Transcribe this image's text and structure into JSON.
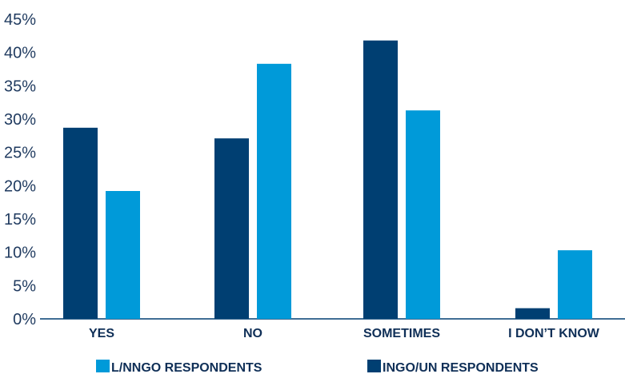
{
  "chart_data": {
    "type": "bar",
    "categories": [
      "YES",
      "NO",
      "SOMETIMES",
      "I DON’T KNOW"
    ],
    "series": [
      {
        "name": "INGO/UN RESPONDENTS",
        "color": "#003f72",
        "values": [
          28.7,
          27.1,
          41.8,
          1.6
        ]
      },
      {
        "name": "L/NNGO RESPONDENTS",
        "color": "#009ad9",
        "values": [
          19.2,
          38.3,
          31.3,
          10.3
        ]
      }
    ],
    "ylim": [
      0,
      45
    ],
    "yticks": [
      "0%",
      "5%",
      "10%",
      "15%",
      "20%",
      "25%",
      "30%",
      "35%",
      "40%",
      "45%"
    ],
    "ytick_values": [
      0,
      5,
      10,
      15,
      20,
      25,
      30,
      35,
      40,
      45
    ],
    "legend": {
      "placement": "bottom",
      "items": [
        {
          "label": "L/NNGO RESPONDENTS",
          "color": "#009ad9"
        },
        {
          "label": "INGO/UN RESPONDENTS",
          "color": "#003f72"
        }
      ]
    },
    "grid": false,
    "title": "",
    "xlabel": "",
    "ylabel": ""
  }
}
